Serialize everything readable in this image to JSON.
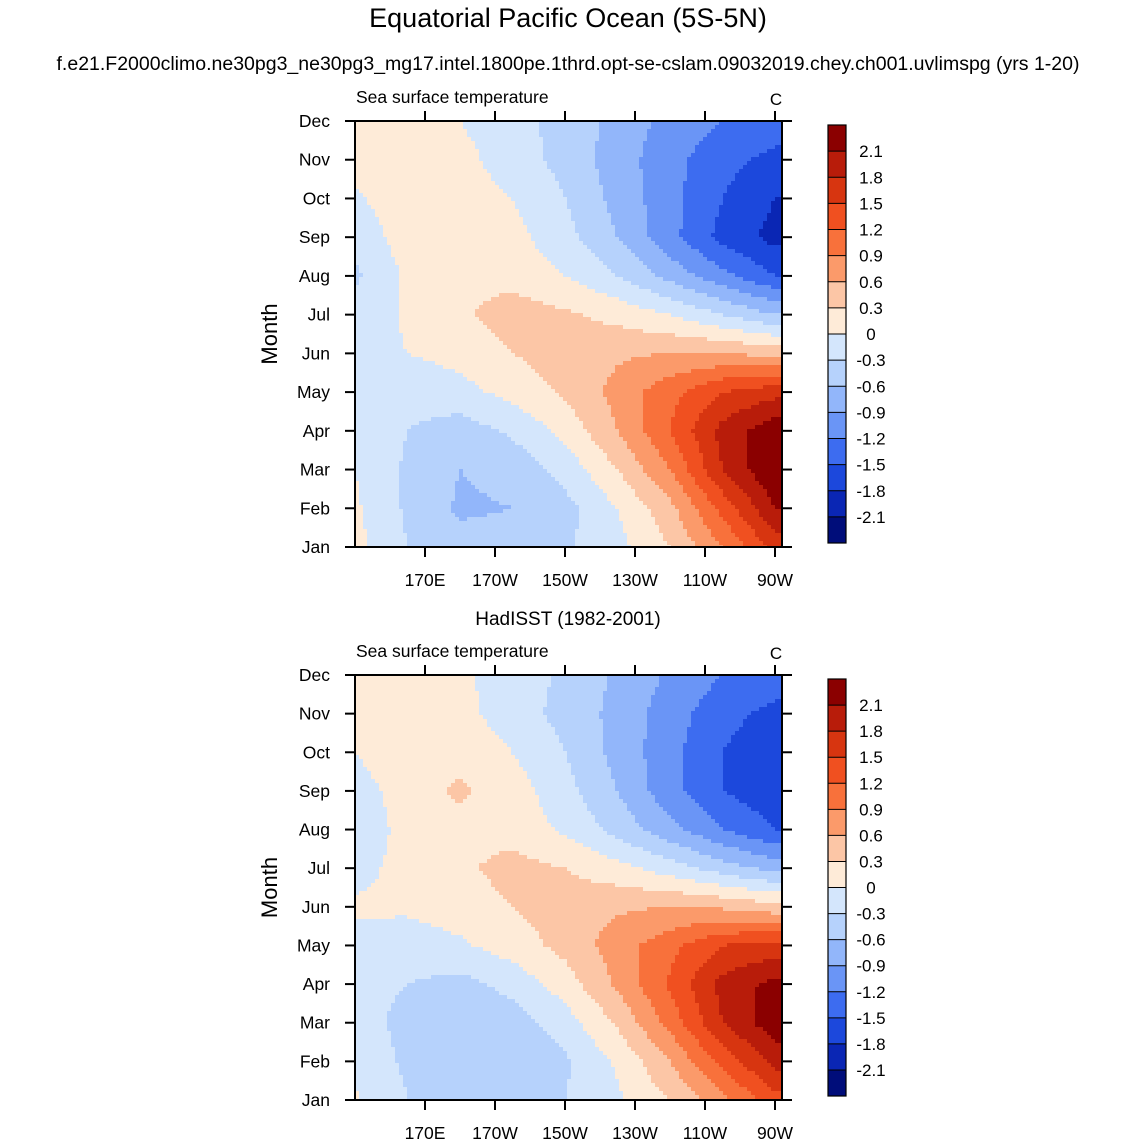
{
  "figure": {
    "title": "Equatorial Pacific Ocean (5S-5N)",
    "subtitle": "f.e21.F2000climo.ne30pg3_ne30pg3_mg17.intel.1800pe.1thrd.opt-se-cslam.09032019.chey.ch001.uvlimspg (yrs 1-20)"
  },
  "colorbar": {
    "levels": [
      "2.1",
      "1.8",
      "1.5",
      "1.2",
      "0.9",
      "0.6",
      "0.3",
      "0",
      "-0.3",
      "-0.6",
      "-0.9",
      "-1.2",
      "-1.5",
      "-1.8",
      "-2.1"
    ],
    "colors": [
      "#8b0000",
      "#b81c0a",
      "#d73510",
      "#f05020",
      "#f8713b",
      "#fb9a6a",
      "#fcc6a6",
      "#feebd8",
      "#d4e6fc",
      "#b6d2fc",
      "#92b6fa",
      "#6a95f6",
      "#3d6cf0",
      "#1c48dc",
      "#0a26b4",
      "#000d7a"
    ]
  },
  "chart_data": [
    {
      "type": "heatmap",
      "heading": "",
      "left_label": "Sea surface temperature",
      "right_label": "C",
      "ylabel": "Month",
      "xticks": [
        "170E",
        "170W",
        "150W",
        "130W",
        "110W",
        "90W"
      ],
      "xtick_lon": [
        170,
        190,
        210,
        230,
        250,
        270
      ],
      "yticks": [
        "Jan",
        "Feb",
        "Mar",
        "Apr",
        "May",
        "Jun",
        "Jul",
        "Aug",
        "Sep",
        "Oct",
        "Nov",
        "Dec"
      ],
      "xlim": [
        150,
        272
      ],
      "ylim": [
        1,
        12
      ],
      "grid": false,
      "units": "C",
      "columns_lon": [
        150,
        165,
        180,
        195,
        210,
        225,
        240,
        255,
        270
      ],
      "values_by_month": [
        [
          0.1,
          -0.3,
          -0.5,
          -0.45,
          -0.35,
          -0.1,
          0.3,
          0.9,
          1.6
        ],
        [
          0.05,
          -0.35,
          -0.65,
          -0.6,
          -0.4,
          0.0,
          0.5,
          1.3,
          2.1
        ],
        [
          0.0,
          -0.35,
          -0.6,
          -0.5,
          -0.2,
          0.3,
          0.9,
          1.8,
          2.4
        ],
        [
          -0.1,
          -0.3,
          -0.45,
          -0.25,
          0.1,
          0.6,
          1.2,
          1.9,
          2.3
        ],
        [
          -0.25,
          -0.2,
          -0.1,
          0.1,
          0.35,
          0.7,
          1.1,
          1.5,
          1.7
        ],
        [
          -0.15,
          0.0,
          0.1,
          0.3,
          0.45,
          0.55,
          0.6,
          0.6,
          0.5
        ],
        [
          -0.2,
          0.05,
          0.25,
          0.45,
          0.35,
          0.2,
          0.0,
          -0.3,
          -0.6
        ],
        [
          -0.35,
          0.05,
          0.2,
          0.2,
          0.0,
          -0.3,
          -0.7,
          -1.1,
          -1.5
        ],
        [
          -0.2,
          0.15,
          0.15,
          0.1,
          -0.2,
          -0.6,
          -1.1,
          -1.6,
          -1.9
        ],
        [
          -0.05,
          0.2,
          0.15,
          0.0,
          -0.3,
          -0.7,
          -1.1,
          -1.5,
          -1.8
        ],
        [
          0.1,
          0.3,
          0.1,
          -0.15,
          -0.4,
          -0.75,
          -1.1,
          -1.4,
          -1.6
        ],
        [
          0.2,
          0.25,
          0.0,
          -0.2,
          -0.4,
          -0.7,
          -1.0,
          -1.2,
          -1.3
        ]
      ]
    },
    {
      "type": "heatmap",
      "heading": "HadISST (1982-2001)",
      "left_label": "Sea surface temperature",
      "right_label": "C",
      "ylabel": "Month",
      "xticks": [
        "170E",
        "170W",
        "150W",
        "130W",
        "110W",
        "90W"
      ],
      "xtick_lon": [
        170,
        190,
        210,
        230,
        250,
        270
      ],
      "yticks": [
        "Jan",
        "Feb",
        "Mar",
        "Apr",
        "May",
        "Jun",
        "Jul",
        "Aug",
        "Sep",
        "Oct",
        "Nov",
        "Dec"
      ],
      "xlim": [
        150,
        272
      ],
      "ylim": [
        1,
        12
      ],
      "grid": false,
      "units": "C",
      "columns_lon": [
        150,
        165,
        180,
        195,
        210,
        225,
        240,
        255,
        270
      ],
      "values_by_month": [
        [
          0.05,
          -0.3,
          -0.45,
          -0.4,
          -0.3,
          -0.05,
          0.3,
          0.8,
          1.4
        ],
        [
          -0.1,
          -0.35,
          -0.6,
          -0.55,
          -0.35,
          0.05,
          0.6,
          1.3,
          1.9
        ],
        [
          -0.15,
          -0.4,
          -0.6,
          -0.45,
          -0.15,
          0.35,
          1.0,
          1.8,
          2.3
        ],
        [
          -0.2,
          -0.3,
          -0.4,
          -0.2,
          0.15,
          0.65,
          1.25,
          1.9,
          2.2
        ],
        [
          -0.1,
          -0.15,
          -0.05,
          0.15,
          0.4,
          0.75,
          1.1,
          1.5,
          1.6
        ],
        [
          0.05,
          0.05,
          0.15,
          0.3,
          0.45,
          0.55,
          0.6,
          0.55,
          0.4
        ],
        [
          -0.1,
          0.1,
          0.25,
          0.4,
          0.3,
          0.1,
          -0.15,
          -0.45,
          -0.7
        ],
        [
          -0.2,
          0.1,
          0.2,
          0.2,
          -0.05,
          -0.4,
          -0.8,
          -1.2,
          -1.5
        ],
        [
          -0.15,
          0.15,
          0.35,
          0.15,
          -0.2,
          -0.6,
          -1.1,
          -1.5,
          -1.7
        ],
        [
          0.0,
          0.25,
          0.2,
          0.0,
          -0.3,
          -0.7,
          -1.1,
          -1.5,
          -1.7
        ],
        [
          0.15,
          0.25,
          0.1,
          -0.15,
          -0.4,
          -0.7,
          -1.05,
          -1.4,
          -1.6
        ],
        [
          0.2,
          0.25,
          0.05,
          -0.15,
          -0.35,
          -0.65,
          -0.95,
          -1.2,
          -1.3
        ]
      ]
    }
  ]
}
